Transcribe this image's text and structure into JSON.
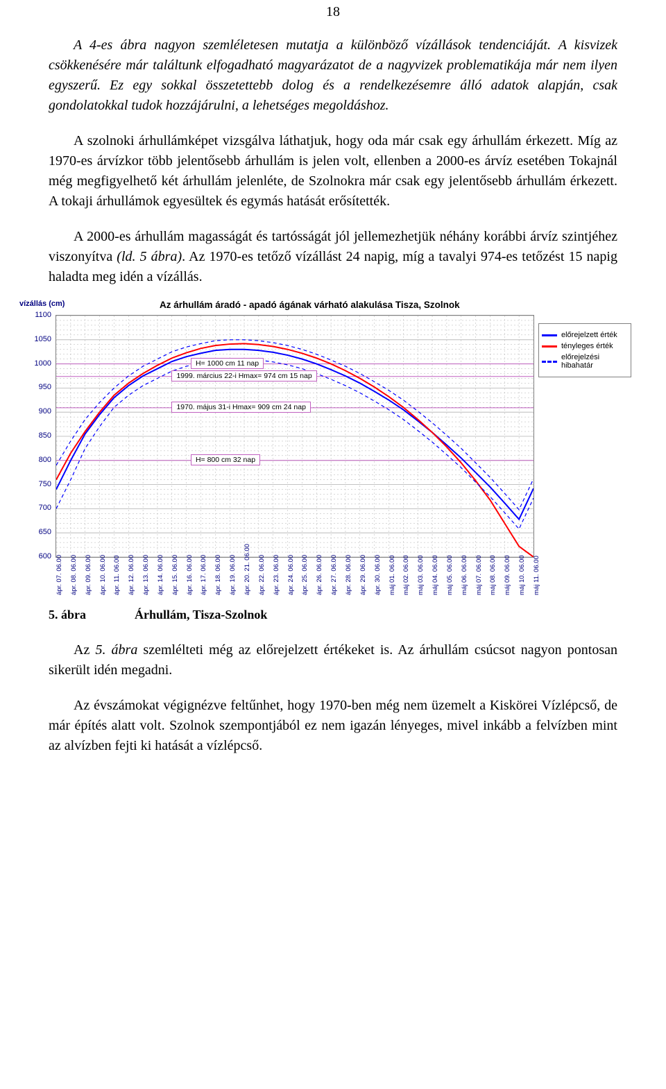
{
  "page_number": "18",
  "paragraphs": {
    "p1": "A 4-es ábra nagyon szemléletesen mutatja a különböző vízállások tendenciáját. A kisvizek csökkenésére már találtunk elfogadható magyarázatot de a nagyvizek problematikája már nem ilyen egyszerű. Ez egy sokkal összetettebb dolog és a rendelkezésemre álló adatok alapján, csak gondolatokkal tudok hozzájárulni, a lehetséges megoldáshoz.",
    "p2": "A szolnoki árhullámképet vizsgálva láthatjuk, hogy oda már csak egy árhullám érkezett. Míg az 1970-es árvízkor több jelentősebb árhullám is jelen volt, ellenben a 2000-es árvíz esetében Tokajnál még megfigyelhető két árhullám jelenléte, de Szolnokra már csak egy jelentősebb árhullám érkezett. A tokaji árhullámok egyesültek és egymás hatását erősítették.",
    "p3_a": "A 2000-es árhullám magasságát és tartósságát jól jellemezhetjük néhány korábbi árvíz szintjéhez viszonyítva ",
    "p3_b": "(ld. 5 ábra)",
    "p3_c": ". Az 1970-es tetőző vízállást 24 napig, míg a tavalyi 974-es tetőzést 15 napig haladta meg idén a vízállás.",
    "p4_a": "Az ",
    "p4_b": "5. ábra",
    "p4_c": " szemlélteti még az előrejelzett értékeket is. Az árhullám csúcsot nagyon pontosan sikerült idén megadni.",
    "p5": "Az évszámokat végignézve feltűnhet, hogy 1970-ben még nem üzemelt a Kiskörei Vízlépcső, de már építés alatt volt. Szolnok szempontjából ez nem igazán lényeges, mivel inkább a felvízben mint az alvízben fejti ki hatását a vízlépcső."
  },
  "figure_caption": {
    "label": "5. ábra",
    "title": "Árhullám, Tisza-Szolnok"
  },
  "chart": {
    "title": "Az árhullám áradó - apadó ágának várható alakulása     Tisza, Szolnok",
    "y_axis_label": "vízállás  (cm)",
    "ylim": [
      600,
      1100
    ],
    "ytick_step": 50,
    "yticks": [
      600,
      650,
      700,
      750,
      800,
      850,
      900,
      950,
      1000,
      1050,
      1100
    ],
    "x_categories": [
      "ápr. 07. 06.00",
      "ápr. 08. 06.00",
      "ápr. 09. 06.00",
      "ápr. 10. 06.00",
      "ápr. 11. 06.00",
      "ápr. 12. 06.00",
      "ápr. 13. 06.00",
      "ápr. 14. 06.00",
      "ápr. 15. 06.00",
      "ápr. 16. 06.00",
      "ápr. 17. 06.00",
      "ápr. 18. 06.00",
      "ápr. 19. 06.00",
      "ápr. 20. 21. 06.00",
      "ápr. 22. 06.00",
      "ápr. 23. 06.00",
      "ápr. 24. 06.00",
      "ápr. 25. 06.00",
      "ápr. 26. 06.00",
      "ápr. 27. 06.00",
      "ápr. 28. 06.00",
      "ápr. 29. 06.00",
      "ápr. 30. 06.00",
      "máj 01. 06.00",
      "máj 02. 06.00",
      "máj 03. 06.00",
      "máj 04. 06.00",
      "máj 05. 06.00",
      "máj 06. 06.00",
      "máj 07. 06.00",
      "máj 08. 06.00",
      "máj 09. 06.00",
      "máj 10. 06.00",
      "máj 11. 06.00"
    ],
    "series": [
      {
        "name": "előrejelzett érték",
        "style": "solid",
        "color": "#0000ff",
        "width": 2,
        "y": [
          740,
          800,
          855,
          895,
          930,
          955,
          975,
          990,
          1005,
          1015,
          1022,
          1028,
          1030,
          1030,
          1028,
          1024,
          1018,
          1010,
          1000,
          988,
          975,
          960,
          943,
          925,
          905,
          882,
          858,
          832,
          805,
          775,
          745,
          712,
          678,
          742
        ]
      },
      {
        "name": "tényleges  érték",
        "style": "solid",
        "color": "#ff0000",
        "width": 2,
        "y": [
          760,
          815,
          860,
          900,
          935,
          960,
          980,
          997,
          1012,
          1023,
          1032,
          1038,
          1041,
          1042,
          1040,
          1036,
          1030,
          1022,
          1012,
          1000,
          986,
          970,
          952,
          932,
          910,
          885,
          858,
          828,
          795,
          758,
          718,
          670,
          622,
          600
        ]
      },
      {
        "name": "előrejelzési hibahatár",
        "style": "dashed",
        "color": "#0000ff",
        "width": 1.2,
        "y": [
          790,
          840,
          885,
          920,
          950,
          975,
          995,
          1010,
          1025,
          1035,
          1042,
          1048,
          1050,
          1050,
          1048,
          1044,
          1038,
          1030,
          1020,
          1008,
          995,
          980,
          963,
          945,
          925,
          902,
          878,
          852,
          825,
          795,
          765,
          732,
          698,
          762
        ]
      },
      {
        "name": "előrejelzési hibahatár alsó",
        "style": "dashed",
        "color": "#0000ff",
        "width": 1.2,
        "_hidden_in_legend": true,
        "y": [
          700,
          760,
          825,
          870,
          910,
          935,
          955,
          970,
          985,
          995,
          1002,
          1008,
          1010,
          1010,
          1008,
          1004,
          998,
          990,
          980,
          968,
          955,
          940,
          923,
          905,
          885,
          862,
          838,
          812,
          785,
          755,
          725,
          692,
          658,
          722
        ]
      }
    ],
    "annotations": [
      {
        "text": "H= 1000 cm  11 nap",
        "yref": 1000,
        "x_offset": 0.42
      },
      {
        "text": "1999. március 22-i Hmax= 974 cm   15 nap",
        "yref": 974,
        "x_offset": 0.38
      },
      {
        "text": "1970. május 31-i Hmax= 909 cm   24 nap",
        "yref": 909,
        "x_offset": 0.38
      },
      {
        "text": "H= 800 cm  32 nap",
        "yref": 800,
        "x_offset": 0.42
      }
    ],
    "grid_color": "#b0b0b0",
    "minor_grid_dash": "2,3",
    "annotation_border": "#c060c0",
    "legend_items": [
      {
        "color": "#0000ff",
        "style": "solid",
        "label": "előrejelzett érték"
      },
      {
        "color": "#ff0000",
        "style": "solid",
        "label": "tényleges  érték"
      },
      {
        "color": "#0000ff",
        "style": "dashed",
        "label": "előrejelzési hibahatár"
      }
    ]
  }
}
